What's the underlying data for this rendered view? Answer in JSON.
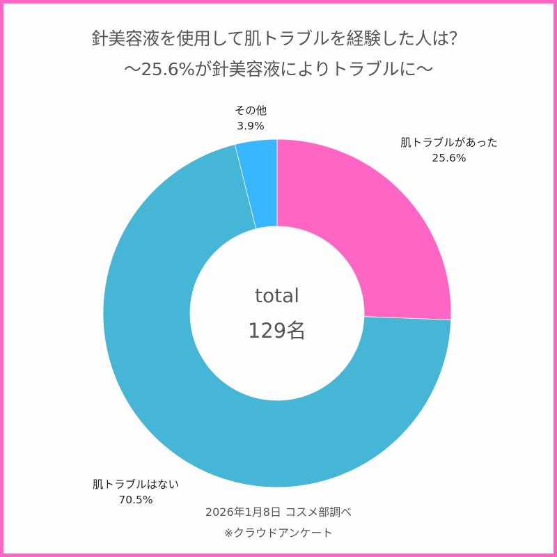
{
  "header": {
    "title_line1": "針美容液を使用して肌トラブルを経験した人は？",
    "title_line2": "〜25.6%が針美容液によりトラブルに〜"
  },
  "center": {
    "label": "total",
    "value": "129名"
  },
  "labels": {
    "trouble": {
      "name": "肌トラブルがあった",
      "pct": "25.6%"
    },
    "none": {
      "name": "肌トラブルはない",
      "pct": "70.5%"
    },
    "other": {
      "name": "その他",
      "pct": "3.9%"
    }
  },
  "footer": {
    "source": "2026年1月8日 コスメ部調べ",
    "note": "※クラウドアンケート"
  },
  "colors": {
    "border": "#ff66c4",
    "trouble": "#ff66c4",
    "none": "#45b6d6",
    "other": "#38b6ff"
  },
  "chart_data": {
    "type": "pie",
    "subtype": "donut",
    "title": "針美容液を使用して肌トラブルを経験した人は？",
    "subtitle": "〜25.6%が針美容液によりトラブルに〜",
    "categories": [
      "肌トラブルがあった",
      "肌トラブルはない",
      "その他"
    ],
    "values": [
      25.6,
      70.5,
      3.9
    ],
    "unit": "%",
    "colors": [
      "#ff66c4",
      "#45b6d6",
      "#38b6ff"
    ],
    "center_label": "total 129名",
    "total_respondents": 129,
    "start_angle": "12 o'clock, clockwise",
    "legend": "none (direct labels)",
    "annotations": [
      "2026年1月8日 コスメ部調べ",
      "※クラウドアンケート"
    ]
  }
}
